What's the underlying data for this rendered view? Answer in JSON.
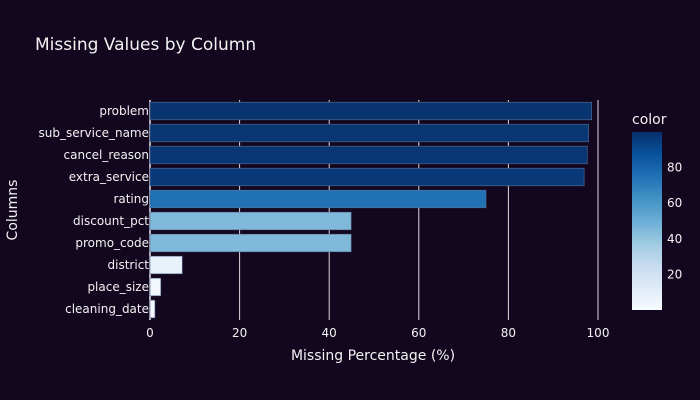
{
  "chart_data": {
    "type": "bar",
    "orientation": "horizontal",
    "title": "Missing Values by Column",
    "xlabel": "Missing Percentage (%)",
    "ylabel": "Columns",
    "xlim": [
      0,
      100
    ],
    "x_ticks": [
      "0",
      "20",
      "40",
      "60",
      "80",
      "100"
    ],
    "categories": [
      "problem",
      "sub_service_name",
      "cancel_reason",
      "extra_service",
      "rating",
      "discount_pct",
      "promo_code",
      "district",
      "place_size",
      "cleaning_date"
    ],
    "values": [
      98.6,
      97.9,
      97.6,
      96.9,
      75.0,
      44.9,
      44.9,
      7.2,
      2.4,
      1.1
    ],
    "grid": true,
    "colorbar": {
      "title": "color",
      "range": [
        0,
        100
      ],
      "ticks": [
        "20",
        "40",
        "60",
        "80"
      ],
      "colorscale": "Blues"
    }
  }
}
